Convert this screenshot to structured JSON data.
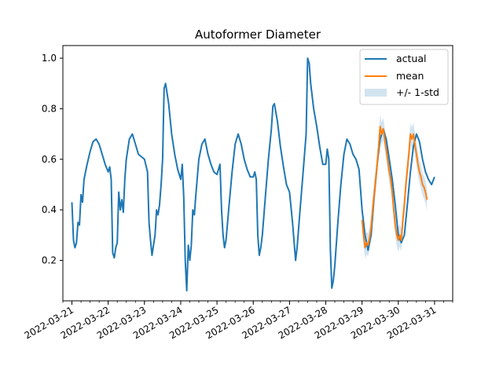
{
  "chart_data": {
    "type": "line",
    "title": "Autoformer Diameter",
    "xlabel": "",
    "ylabel": "",
    "x_type": "date",
    "xlim": [
      "2022-03-20T18:00",
      "2022-03-31T12:00"
    ],
    "ylim": [
      0.04,
      1.05
    ],
    "x_ticks": [
      "2022-03-21",
      "2022-03-22",
      "2022-03-23",
      "2022-03-24",
      "2022-03-25",
      "2022-03-26",
      "2022-03-27",
      "2022-03-28",
      "2022-03-29",
      "2022-03-30",
      "2022-03-31"
    ],
    "y_ticks": [
      "0.2",
      "0.4",
      "0.6",
      "0.8",
      "1.0"
    ],
    "grid": false,
    "legend": {
      "position": "top-right",
      "entries": [
        "actual",
        "mean",
        "+/- 1-std"
      ]
    },
    "colors": {
      "actual": "#1f77b4",
      "mean": "#ff7f0e",
      "band": "#1f77b4",
      "band_opacity": 0.2
    },
    "series": [
      {
        "name": "actual",
        "points": [
          [
            "2022-03-21T00:00",
            0.43
          ],
          [
            "2022-03-21T01:00",
            0.28
          ],
          [
            "2022-03-21T02:00",
            0.25
          ],
          [
            "2022-03-21T03:00",
            0.27
          ],
          [
            "2022-03-21T04:00",
            0.35
          ],
          [
            "2022-03-21T05:00",
            0.34
          ],
          [
            "2022-03-21T06:00",
            0.46
          ],
          [
            "2022-03-21T07:00",
            0.43
          ],
          [
            "2022-03-21T08:00",
            0.52
          ],
          [
            "2022-03-21T10:00",
            0.58
          ],
          [
            "2022-03-21T12:00",
            0.63
          ],
          [
            "2022-03-21T14:00",
            0.67
          ],
          [
            "2022-03-21T16:00",
            0.68
          ],
          [
            "2022-03-21T18:00",
            0.66
          ],
          [
            "2022-03-21T20:00",
            0.62
          ],
          [
            "2022-03-21T22:00",
            0.58
          ],
          [
            "2022-03-22T00:00",
            0.55
          ],
          [
            "2022-03-22T01:00",
            0.57
          ],
          [
            "2022-03-22T02:00",
            0.52
          ],
          [
            "2022-03-22T03:00",
            0.23
          ],
          [
            "2022-03-22T04:00",
            0.21
          ],
          [
            "2022-03-22T05:00",
            0.25
          ],
          [
            "2022-03-22T06:00",
            0.27
          ],
          [
            "2022-03-22T07:00",
            0.47
          ],
          [
            "2022-03-22T08:00",
            0.4
          ],
          [
            "2022-03-22T09:00",
            0.44
          ],
          [
            "2022-03-22T10:00",
            0.39
          ],
          [
            "2022-03-22T11:00",
            0.52
          ],
          [
            "2022-03-22T12:00",
            0.6
          ],
          [
            "2022-03-22T14:00",
            0.68
          ],
          [
            "2022-03-22T16:00",
            0.7
          ],
          [
            "2022-03-22T18:00",
            0.66
          ],
          [
            "2022-03-22T20:00",
            0.62
          ],
          [
            "2022-03-22T22:00",
            0.61
          ],
          [
            "2022-03-23T00:00",
            0.6
          ],
          [
            "2022-03-23T02:00",
            0.55
          ],
          [
            "2022-03-23T03:00",
            0.35
          ],
          [
            "2022-03-23T04:00",
            0.28
          ],
          [
            "2022-03-23T05:00",
            0.22
          ],
          [
            "2022-03-23T06:00",
            0.26
          ],
          [
            "2022-03-23T07:00",
            0.3
          ],
          [
            "2022-03-23T08:00",
            0.4
          ],
          [
            "2022-03-23T09:00",
            0.38
          ],
          [
            "2022-03-23T10:00",
            0.42
          ],
          [
            "2022-03-23T11:00",
            0.5
          ],
          [
            "2022-03-23T12:00",
            0.6
          ],
          [
            "2022-03-23T13:00",
            0.88
          ],
          [
            "2022-03-23T14:00",
            0.9
          ],
          [
            "2022-03-23T16:00",
            0.82
          ],
          [
            "2022-03-23T18:00",
            0.7
          ],
          [
            "2022-03-23T20:00",
            0.62
          ],
          [
            "2022-03-23T22:00",
            0.56
          ],
          [
            "2022-03-24T00:00",
            0.52
          ],
          [
            "2022-03-24T01:00",
            0.58
          ],
          [
            "2022-03-24T02:00",
            0.45
          ],
          [
            "2022-03-24T03:00",
            0.2
          ],
          [
            "2022-03-24T04:00",
            0.08
          ],
          [
            "2022-03-24T05:00",
            0.26
          ],
          [
            "2022-03-24T06:00",
            0.2
          ],
          [
            "2022-03-24T07:00",
            0.26
          ],
          [
            "2022-03-24T08:00",
            0.4
          ],
          [
            "2022-03-24T09:00",
            0.38
          ],
          [
            "2022-03-24T10:00",
            0.46
          ],
          [
            "2022-03-24T12:00",
            0.6
          ],
          [
            "2022-03-24T14:00",
            0.66
          ],
          [
            "2022-03-24T16:00",
            0.68
          ],
          [
            "2022-03-24T18:00",
            0.62
          ],
          [
            "2022-03-24T20:00",
            0.58
          ],
          [
            "2022-03-24T22:00",
            0.55
          ],
          [
            "2022-03-25T00:00",
            0.54
          ],
          [
            "2022-03-25T02:00",
            0.58
          ],
          [
            "2022-03-25T03:00",
            0.4
          ],
          [
            "2022-03-25T04:00",
            0.3
          ],
          [
            "2022-03-25T05:00",
            0.25
          ],
          [
            "2022-03-25T06:00",
            0.28
          ],
          [
            "2022-03-25T08:00",
            0.42
          ],
          [
            "2022-03-25T10:00",
            0.55
          ],
          [
            "2022-03-25T12:00",
            0.66
          ],
          [
            "2022-03-25T14:00",
            0.7
          ],
          [
            "2022-03-25T16:00",
            0.66
          ],
          [
            "2022-03-25T18:00",
            0.6
          ],
          [
            "2022-03-25T20:00",
            0.56
          ],
          [
            "2022-03-25T22:00",
            0.53
          ],
          [
            "2022-03-26T00:00",
            0.53
          ],
          [
            "2022-03-26T01:00",
            0.55
          ],
          [
            "2022-03-26T02:00",
            0.52
          ],
          [
            "2022-03-26T03:00",
            0.3
          ],
          [
            "2022-03-26T04:00",
            0.22
          ],
          [
            "2022-03-26T05:00",
            0.25
          ],
          [
            "2022-03-26T06:00",
            0.3
          ],
          [
            "2022-03-26T08:00",
            0.45
          ],
          [
            "2022-03-26T10:00",
            0.6
          ],
          [
            "2022-03-26T12:00",
            0.72
          ],
          [
            "2022-03-26T13:00",
            0.81
          ],
          [
            "2022-03-26T14:00",
            0.82
          ],
          [
            "2022-03-26T16:00",
            0.75
          ],
          [
            "2022-03-26T18:00",
            0.65
          ],
          [
            "2022-03-26T20:00",
            0.57
          ],
          [
            "2022-03-26T22:00",
            0.5
          ],
          [
            "2022-03-27T00:00",
            0.47
          ],
          [
            "2022-03-27T02:00",
            0.35
          ],
          [
            "2022-03-27T04:00",
            0.2
          ],
          [
            "2022-03-27T05:00",
            0.25
          ],
          [
            "2022-03-27T07:00",
            0.4
          ],
          [
            "2022-03-27T09:00",
            0.55
          ],
          [
            "2022-03-27T11:00",
            0.7
          ],
          [
            "2022-03-27T12:00",
            1.0
          ],
          [
            "2022-03-27T13:00",
            0.98
          ],
          [
            "2022-03-27T14:00",
            0.9
          ],
          [
            "2022-03-27T16:00",
            0.8
          ],
          [
            "2022-03-27T18:00",
            0.73
          ],
          [
            "2022-03-27T20:00",
            0.65
          ],
          [
            "2022-03-27T22:00",
            0.58
          ],
          [
            "2022-03-28T00:00",
            0.58
          ],
          [
            "2022-03-28T01:00",
            0.64
          ],
          [
            "2022-03-28T02:00",
            0.6
          ],
          [
            "2022-03-28T03:00",
            0.25
          ],
          [
            "2022-03-28T04:00",
            0.09
          ],
          [
            "2022-03-28T05:00",
            0.12
          ],
          [
            "2022-03-28T06:00",
            0.18
          ],
          [
            "2022-03-28T08:00",
            0.35
          ],
          [
            "2022-03-28T10:00",
            0.5
          ],
          [
            "2022-03-28T12:00",
            0.62
          ],
          [
            "2022-03-28T14:00",
            0.68
          ],
          [
            "2022-03-28T16:00",
            0.66
          ],
          [
            "2022-03-28T18:00",
            0.62
          ],
          [
            "2022-03-28T20:00",
            0.6
          ],
          [
            "2022-03-28T22:00",
            0.56
          ],
          [
            "2022-03-29T00:00",
            0.4
          ],
          [
            "2022-03-29T02:00",
            0.3
          ],
          [
            "2022-03-29T04:00",
            0.24
          ],
          [
            "2022-03-29T06:00",
            0.3
          ],
          [
            "2022-03-29T08:00",
            0.45
          ],
          [
            "2022-03-29T10:00",
            0.58
          ],
          [
            "2022-03-29T12:00",
            0.68
          ],
          [
            "2022-03-29T14:00",
            0.72
          ],
          [
            "2022-03-29T16:00",
            0.68
          ],
          [
            "2022-03-29T18:00",
            0.6
          ],
          [
            "2022-03-29T20:00",
            0.52
          ],
          [
            "2022-03-29T22:00",
            0.42
          ],
          [
            "2022-03-30T00:00",
            0.3
          ],
          [
            "2022-03-30T02:00",
            0.27
          ],
          [
            "2022-03-30T04:00",
            0.3
          ],
          [
            "2022-03-30T06:00",
            0.42
          ],
          [
            "2022-03-30T08:00",
            0.55
          ],
          [
            "2022-03-30T10:00",
            0.65
          ],
          [
            "2022-03-30T12:00",
            0.7
          ],
          [
            "2022-03-30T14:00",
            0.67
          ],
          [
            "2022-03-30T16:00",
            0.6
          ],
          [
            "2022-03-30T18:00",
            0.55
          ],
          [
            "2022-03-30T20:00",
            0.52
          ],
          [
            "2022-03-30T22:00",
            0.5
          ],
          [
            "2022-03-31T00:00",
            0.53
          ]
        ]
      },
      {
        "name": "mean",
        "points": [
          [
            "2022-03-29T00:00",
            0.36
          ],
          [
            "2022-03-29T01:00",
            0.3
          ],
          [
            "2022-03-29T02:00",
            0.25
          ],
          [
            "2022-03-29T03:00",
            0.27
          ],
          [
            "2022-03-29T04:00",
            0.26
          ],
          [
            "2022-03-29T05:00",
            0.29
          ],
          [
            "2022-03-29T06:00",
            0.33
          ],
          [
            "2022-03-29T07:00",
            0.4
          ],
          [
            "2022-03-29T08:00",
            0.46
          ],
          [
            "2022-03-29T09:00",
            0.52
          ],
          [
            "2022-03-29T10:00",
            0.58
          ],
          [
            "2022-03-29T11:00",
            0.65
          ],
          [
            "2022-03-29T12:00",
            0.73
          ],
          [
            "2022-03-29T13:00",
            0.7
          ],
          [
            "2022-03-29T14:00",
            0.72
          ],
          [
            "2022-03-29T15:00",
            0.68
          ],
          [
            "2022-03-29T16:00",
            0.64
          ],
          [
            "2022-03-29T17:00",
            0.6
          ],
          [
            "2022-03-29T18:00",
            0.55
          ],
          [
            "2022-03-29T19:00",
            0.52
          ],
          [
            "2022-03-29T20:00",
            0.47
          ],
          [
            "2022-03-29T21:00",
            0.4
          ],
          [
            "2022-03-29T22:00",
            0.34
          ],
          [
            "2022-03-29T23:00",
            0.3
          ],
          [
            "2022-03-30T00:00",
            0.28
          ],
          [
            "2022-03-30T01:00",
            0.3
          ],
          [
            "2022-03-30T02:00",
            0.28
          ],
          [
            "2022-03-30T03:00",
            0.36
          ],
          [
            "2022-03-30T04:00",
            0.42
          ],
          [
            "2022-03-30T05:00",
            0.5
          ],
          [
            "2022-03-30T06:00",
            0.56
          ],
          [
            "2022-03-30T07:00",
            0.62
          ],
          [
            "2022-03-30T08:00",
            0.7
          ],
          [
            "2022-03-30T09:00",
            0.68
          ],
          [
            "2022-03-30T10:00",
            0.7
          ],
          [
            "2022-03-30T11:00",
            0.66
          ],
          [
            "2022-03-30T12:00",
            0.62
          ],
          [
            "2022-03-30T13:00",
            0.58
          ],
          [
            "2022-03-30T14:00",
            0.55
          ],
          [
            "2022-03-30T15:00",
            0.53
          ],
          [
            "2022-03-30T16:00",
            0.5
          ],
          [
            "2022-03-30T17:00",
            0.49
          ],
          [
            "2022-03-30T18:00",
            0.47
          ],
          [
            "2022-03-30T19:00",
            0.44
          ]
        ],
        "band_std": 0.045
      }
    ]
  }
}
